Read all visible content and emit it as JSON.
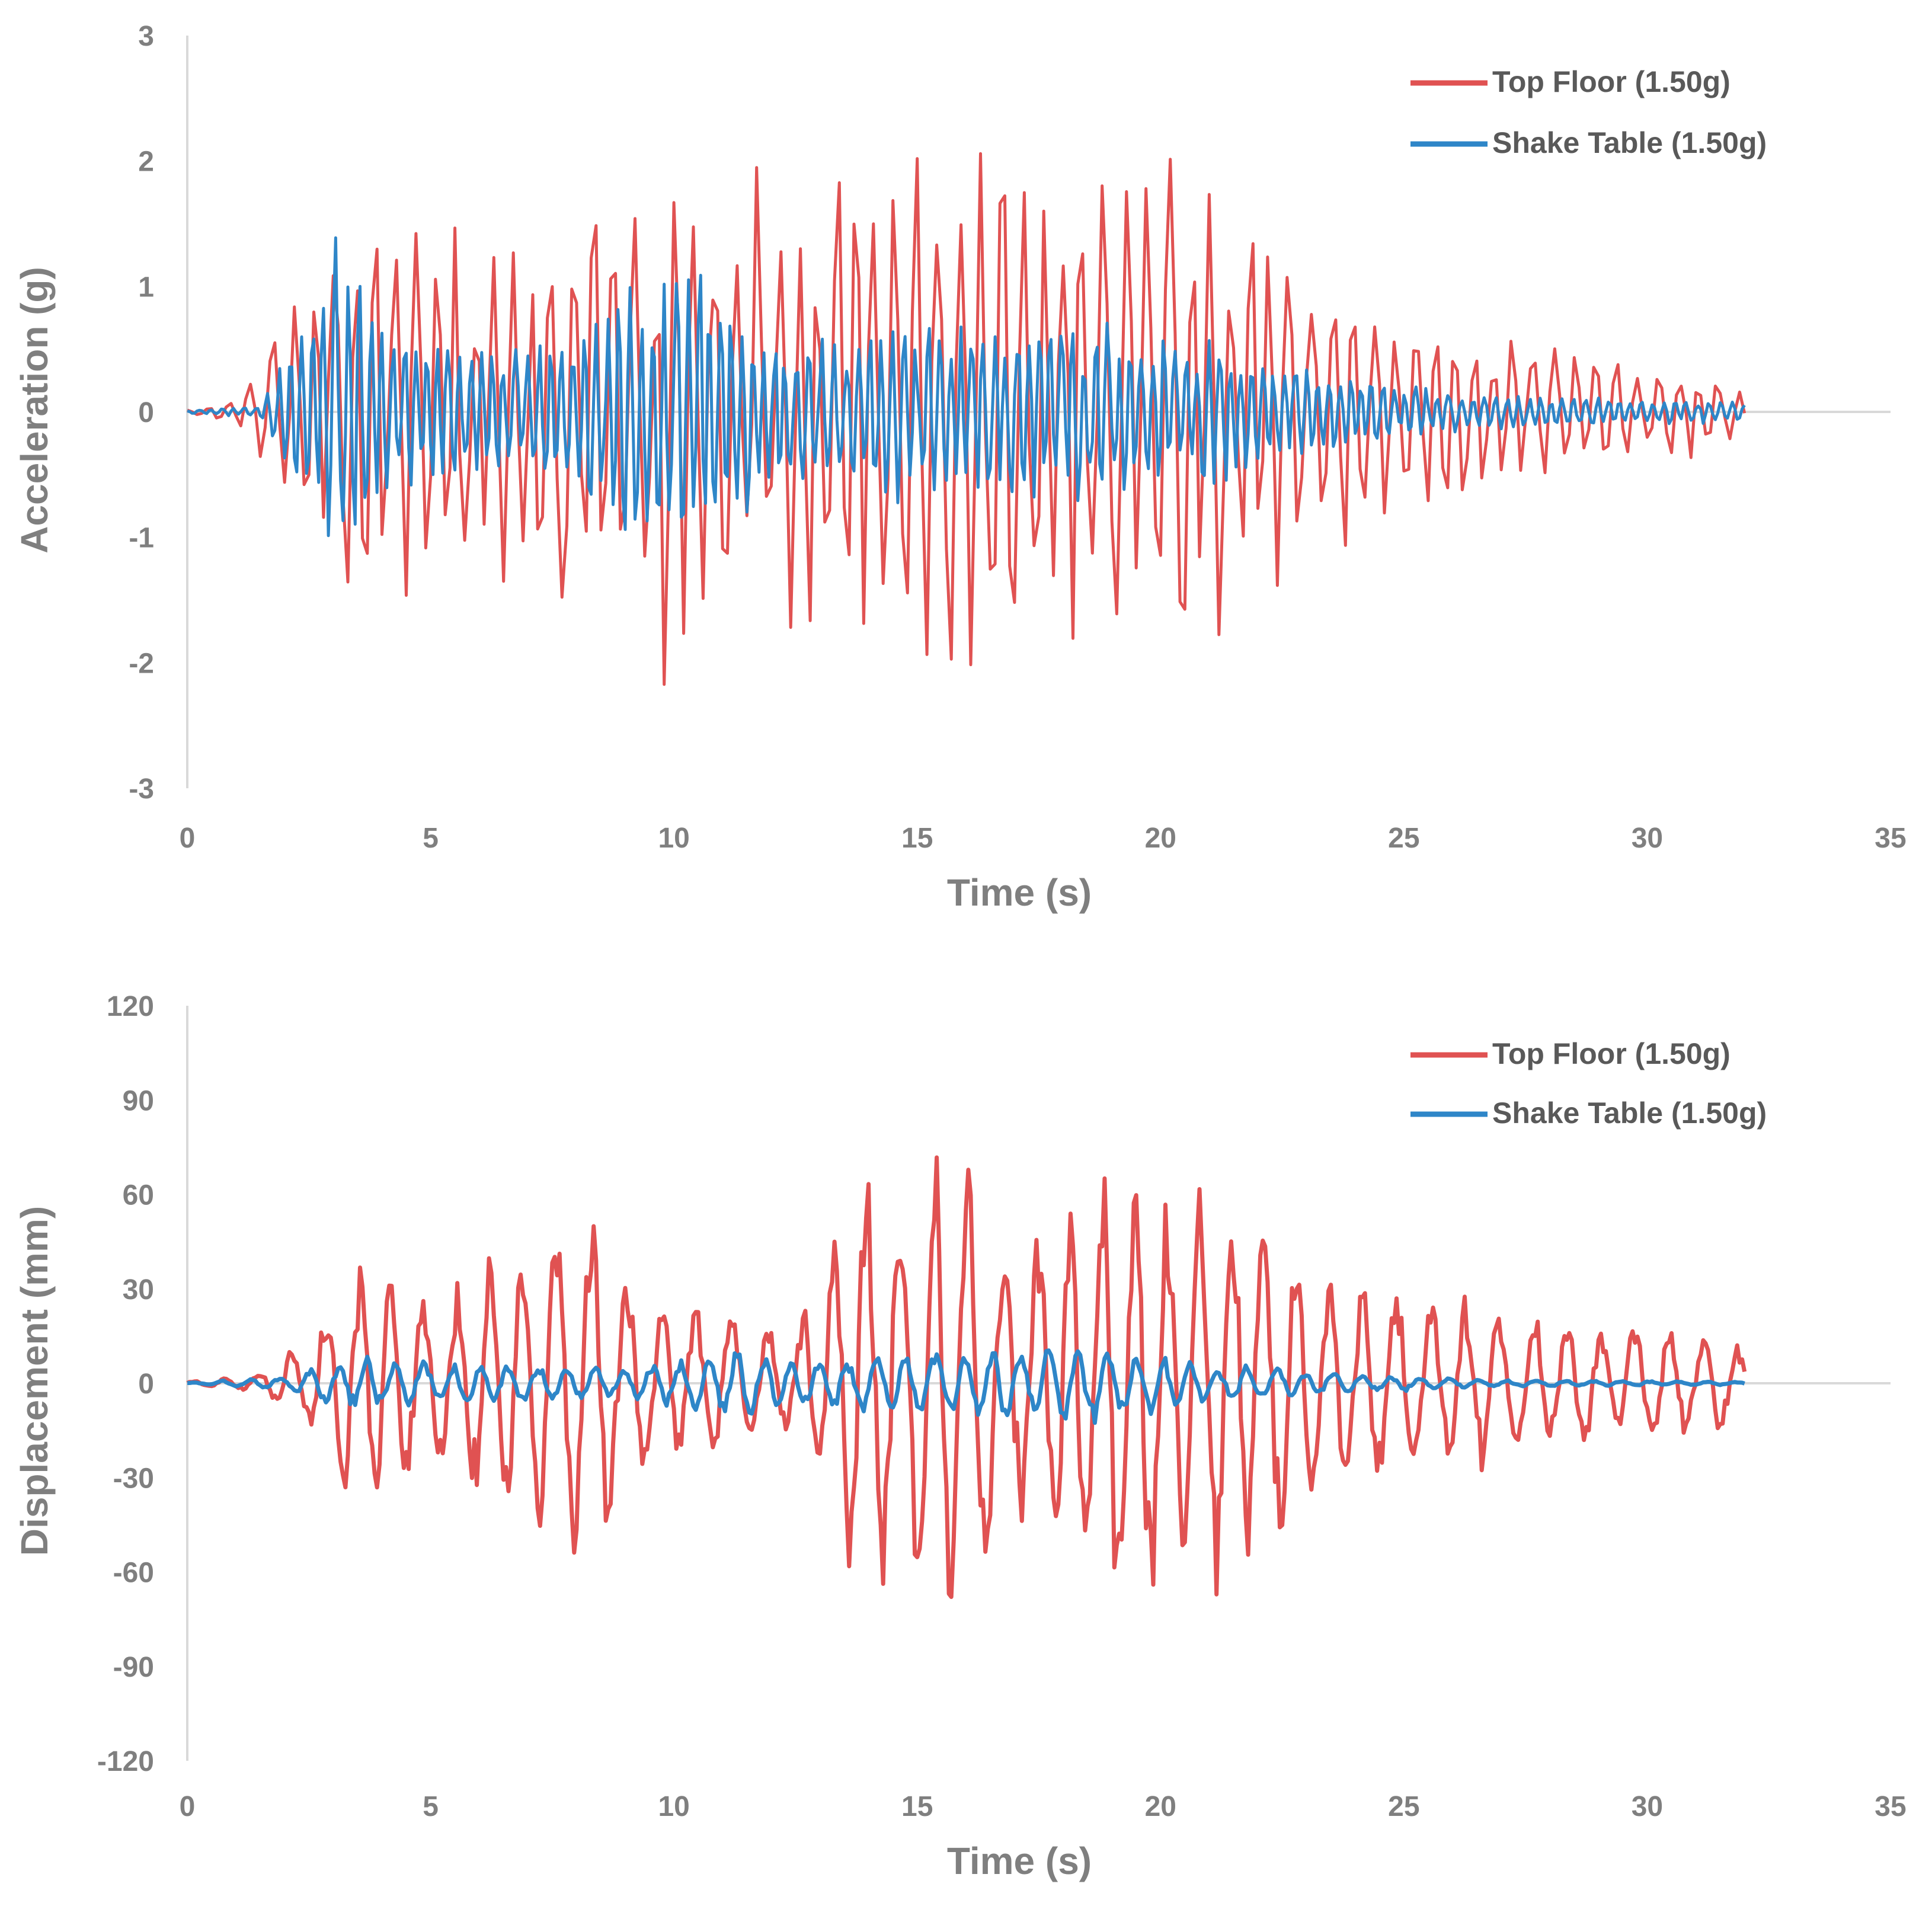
{
  "chart_data": [
    {
      "type": "line",
      "title": "",
      "xlabel": "Time (s)",
      "ylabel": "Acceleration (g)",
      "xlim": [
        0,
        35
      ],
      "ylim": [
        -3,
        3
      ],
      "x_ticks": [
        "0",
        "5",
        "10",
        "15",
        "20",
        "25",
        "30",
        "35"
      ],
      "y_ticks": [
        "3",
        "2",
        "1",
        "0",
        "-1",
        "-2",
        "-3"
      ],
      "grid": false,
      "legend_position": "top-right",
      "series": [
        {
          "name": "Top Floor (1.50g)",
          "color": "#e05252",
          "sample_interval_s": 0.1,
          "t_end": 32,
          "envelope_peaks": [
            {
              "t": 0.0,
              "amp": 0.02
            },
            {
              "t": 1.0,
              "amp": 0.08
            },
            {
              "t": 2.0,
              "amp": 0.9
            },
            {
              "t": 3.3,
              "amp": 1.9
            },
            {
              "t": 4.0,
              "amp": 1.6
            },
            {
              "t": 6.0,
              "amp": 1.4
            },
            {
              "t": 8.0,
              "amp": 1.9
            },
            {
              "t": 10.2,
              "amp": 2.2
            },
            {
              "t": 12.0,
              "amp": 1.8
            },
            {
              "t": 14.0,
              "amp": 2.2
            },
            {
              "t": 16.4,
              "amp": 2.2
            },
            {
              "t": 18.0,
              "amp": 2.0
            },
            {
              "t": 20.5,
              "amp": 2.1
            },
            {
              "t": 22.5,
              "amp": 1.5
            },
            {
              "t": 25.0,
              "amp": 0.9
            },
            {
              "t": 28.0,
              "amp": 0.55
            },
            {
              "t": 32.0,
              "amp": 0.25
            }
          ],
          "freq_hz": 2.4
        },
        {
          "name": "Shake Table (1.50g)",
          "color": "#2e86c8",
          "sample_interval_s": 0.05,
          "t_end": 32,
          "envelope_peaks": [
            {
              "t": 0.0,
              "amp": 0.01
            },
            {
              "t": 1.5,
              "amp": 0.05
            },
            {
              "t": 2.2,
              "amp": 0.7
            },
            {
              "t": 3.3,
              "amp": 1.5
            },
            {
              "t": 4.5,
              "amp": 0.6
            },
            {
              "t": 7.0,
              "amp": 0.5
            },
            {
              "t": 10.0,
              "amp": 1.3
            },
            {
              "t": 12.0,
              "amp": 0.6
            },
            {
              "t": 15.0,
              "amp": 0.75
            },
            {
              "t": 18.0,
              "amp": 0.75
            },
            {
              "t": 20.5,
              "amp": 0.65
            },
            {
              "t": 23.0,
              "amp": 0.35
            },
            {
              "t": 26.0,
              "amp": 0.15
            },
            {
              "t": 32.0,
              "amp": 0.08
            }
          ],
          "freq_hz": 4.3
        }
      ]
    },
    {
      "type": "line",
      "title": "",
      "xlabel": "Time (s)",
      "ylabel": "Displacement (mm)",
      "xlim": [
        0,
        35
      ],
      "ylim": [
        -120,
        120
      ],
      "x_ticks": [
        "0",
        "5",
        "10",
        "15",
        "20",
        "25",
        "30",
        "35"
      ],
      "y_ticks": [
        "120",
        "90",
        "60",
        "30",
        "0",
        "-30",
        "-60",
        "-90",
        "-120"
      ],
      "grid": false,
      "legend_position": "top-right",
      "series": [
        {
          "name": "Top Floor (1.50g)",
          "color": "#e05252",
          "sample_interval_s": 0.05,
          "t_end": 32,
          "envelope_peaks": [
            {
              "t": 0.0,
              "amp": 0.5
            },
            {
              "t": 1.5,
              "amp": 3
            },
            {
              "t": 2.5,
              "amp": 15
            },
            {
              "t": 3.6,
              "amp": 44
            },
            {
              "t": 5.0,
              "amp": 28
            },
            {
              "t": 6.5,
              "amp": 40
            },
            {
              "t": 7.5,
              "amp": 55
            },
            {
              "t": 8.1,
              "amp": 60
            },
            {
              "t": 9.5,
              "amp": 25
            },
            {
              "t": 11.0,
              "amp": 25
            },
            {
              "t": 12.5,
              "amp": 15
            },
            {
              "t": 13.5,
              "amp": 60
            },
            {
              "t": 15.0,
              "amp": 72
            },
            {
              "t": 15.6,
              "amp": 80
            },
            {
              "t": 17.0,
              "amp": 45
            },
            {
              "t": 19.0,
              "amp": 74
            },
            {
              "t": 20.5,
              "amp": 68
            },
            {
              "t": 22.0,
              "amp": 58
            },
            {
              "t": 23.5,
              "amp": 35
            },
            {
              "t": 25.0,
              "amp": 32
            },
            {
              "t": 28.0,
              "amp": 22
            },
            {
              "t": 32.0,
              "amp": 14
            }
          ],
          "freq_hz": 1.45
        },
        {
          "name": "Shake Table (1.50g)",
          "color": "#2e86c8",
          "sample_interval_s": 0.05,
          "t_end": 32,
          "envelope_peaks": [
            {
              "t": 0.0,
              "amp": 0.2
            },
            {
              "t": 2.0,
              "amp": 2
            },
            {
              "t": 3.0,
              "amp": 8
            },
            {
              "t": 4.2,
              "amp": 8
            },
            {
              "t": 6.5,
              "amp": 6
            },
            {
              "t": 9.0,
              "amp": 5
            },
            {
              "t": 11.0,
              "amp": 11
            },
            {
              "t": 13.0,
              "amp": 8
            },
            {
              "t": 15.0,
              "amp": 10
            },
            {
              "t": 18.5,
              "amp": 13
            },
            {
              "t": 21.0,
              "amp": 6
            },
            {
              "t": 24.0,
              "amp": 3
            },
            {
              "t": 27.0,
              "amp": 1
            },
            {
              "t": 32.0,
              "amp": 0.5
            }
          ],
          "freq_hz": 1.7
        }
      ]
    }
  ]
}
